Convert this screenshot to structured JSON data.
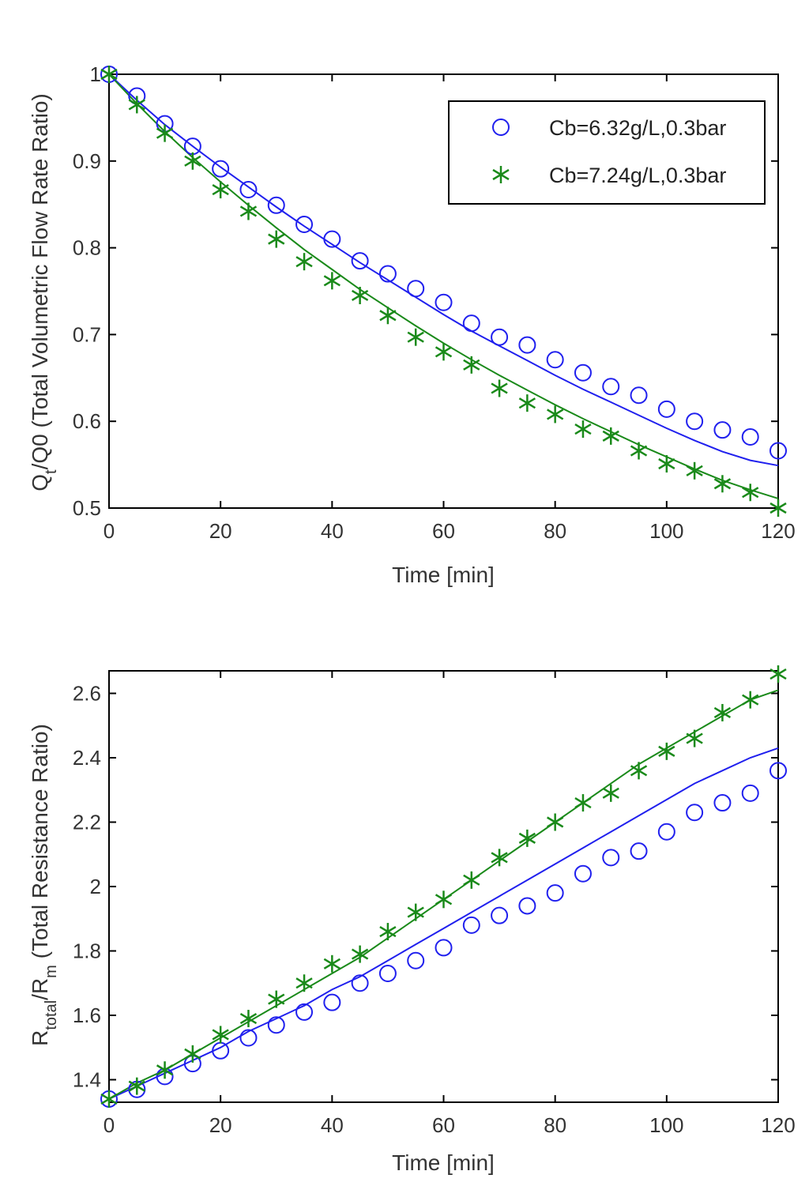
{
  "chart_data": [
    {
      "type": "line",
      "xlabel": "Time [min]",
      "ylabel_main": "Q",
      "ylabel_sub": "t",
      "ylabel_rest": "/Q0  (Total Volumetric Flow Rate Ratio)",
      "xlim": [
        0,
        120
      ],
      "ylim": [
        0.5,
        1.0
      ],
      "xticks": [
        0,
        20,
        40,
        60,
        80,
        100,
        120
      ],
      "yticks": [
        0.5,
        0.6,
        0.7,
        0.8,
        0.9,
        1.0
      ],
      "ytick_labels": [
        "0.5",
        "0.6",
        "0.7",
        "0.8",
        "0.9",
        "1"
      ],
      "legend": "top-right",
      "series": [
        {
          "name": "Cb=6.32g/L,0.3bar",
          "color": "#2020ee",
          "marker": "circle",
          "x": [
            0,
            5,
            10,
            15,
            20,
            25,
            30,
            35,
            40,
            45,
            50,
            55,
            60,
            65,
            70,
            75,
            80,
            85,
            90,
            95,
            100,
            105,
            110,
            115,
            120
          ],
          "measured": [
            1.0,
            0.975,
            0.943,
            0.917,
            0.891,
            0.867,
            0.849,
            0.827,
            0.81,
            0.785,
            0.77,
            0.753,
            0.737,
            0.713,
            0.697,
            0.688,
            0.671,
            0.656,
            0.64,
            0.63,
            0.614,
            0.6,
            0.59,
            0.582,
            0.566
          ],
          "model": [
            1.0,
            0.97,
            0.942,
            0.917,
            0.893,
            0.87,
            0.847,
            0.825,
            0.804,
            0.783,
            0.763,
            0.743,
            0.723,
            0.704,
            0.687,
            0.67,
            0.653,
            0.637,
            0.622,
            0.607,
            0.592,
            0.578,
            0.565,
            0.555,
            0.549
          ]
        },
        {
          "name": "Cb=7.24g/L,0.3bar",
          "color": "#1a8a1a",
          "marker": "star",
          "x": [
            0,
            5,
            10,
            15,
            20,
            25,
            30,
            35,
            40,
            45,
            50,
            55,
            60,
            65,
            70,
            75,
            80,
            85,
            90,
            95,
            100,
            105,
            110,
            115,
            120
          ],
          "measured": [
            1.0,
            0.965,
            0.932,
            0.9,
            0.867,
            0.842,
            0.81,
            0.784,
            0.762,
            0.745,
            0.722,
            0.697,
            0.68,
            0.665,
            0.638,
            0.621,
            0.608,
            0.591,
            0.583,
            0.566,
            0.551,
            0.543,
            0.528,
            0.518,
            0.5
          ],
          "model": [
            1.0,
            0.966,
            0.934,
            0.904,
            0.876,
            0.849,
            0.823,
            0.798,
            0.775,
            0.752,
            0.731,
            0.71,
            0.69,
            0.671,
            0.653,
            0.636,
            0.619,
            0.603,
            0.588,
            0.573,
            0.559,
            0.545,
            0.532,
            0.521,
            0.511
          ]
        }
      ]
    },
    {
      "type": "line",
      "xlabel": "Time [min]",
      "ylabel_main": "R",
      "ylabel_sub": "total",
      "ylabel_mid": "/R",
      "ylabel_sub2": "m",
      "ylabel_rest": "  (Total Resistance Ratio)",
      "xlim": [
        0,
        120
      ],
      "ylim": [
        1.33,
        2.67
      ],
      "xticks": [
        0,
        20,
        40,
        60,
        80,
        100,
        120
      ],
      "yticks": [
        1.4,
        1.6,
        1.8,
        2.0,
        2.2,
        2.4,
        2.6
      ],
      "ytick_labels": [
        "1.4",
        "1.6",
        "1.8",
        "2",
        "2.2",
        "2.4",
        "2.6"
      ],
      "series": [
        {
          "name": "Cb=6.32g/L,0.3bar",
          "color": "#2020ee",
          "marker": "circle",
          "x": [
            0,
            5,
            10,
            15,
            20,
            25,
            30,
            35,
            40,
            45,
            50,
            55,
            60,
            65,
            70,
            75,
            80,
            85,
            90,
            95,
            100,
            105,
            110,
            115,
            120
          ],
          "measured": [
            1.34,
            1.37,
            1.41,
            1.45,
            1.49,
            1.53,
            1.57,
            1.61,
            1.64,
            1.7,
            1.73,
            1.77,
            1.81,
            1.88,
            1.91,
            1.94,
            1.98,
            2.04,
            2.09,
            2.11,
            2.17,
            2.23,
            2.26,
            2.29,
            2.36
          ],
          "model": [
            1.34,
            1.38,
            1.42,
            1.46,
            1.5,
            1.55,
            1.59,
            1.63,
            1.68,
            1.72,
            1.77,
            1.82,
            1.87,
            1.92,
            1.97,
            2.02,
            2.07,
            2.12,
            2.17,
            2.22,
            2.27,
            2.32,
            2.36,
            2.4,
            2.43
          ]
        },
        {
          "name": "Cb=7.24g/L,0.3bar",
          "color": "#1a8a1a",
          "marker": "star",
          "x": [
            0,
            5,
            10,
            15,
            20,
            25,
            30,
            35,
            40,
            45,
            50,
            55,
            60,
            65,
            70,
            75,
            80,
            85,
            90,
            95,
            100,
            105,
            110,
            115,
            120
          ],
          "measured": [
            1.34,
            1.38,
            1.43,
            1.48,
            1.54,
            1.59,
            1.65,
            1.7,
            1.76,
            1.79,
            1.86,
            1.92,
            1.96,
            2.02,
            2.09,
            2.15,
            2.2,
            2.26,
            2.29,
            2.36,
            2.42,
            2.46,
            2.54,
            2.58,
            2.66
          ],
          "model": [
            1.34,
            1.39,
            1.43,
            1.48,
            1.53,
            1.58,
            1.63,
            1.68,
            1.73,
            1.78,
            1.84,
            1.9,
            1.96,
            2.02,
            2.08,
            2.14,
            2.2,
            2.26,
            2.32,
            2.38,
            2.43,
            2.48,
            2.53,
            2.58,
            2.61
          ]
        }
      ]
    }
  ]
}
